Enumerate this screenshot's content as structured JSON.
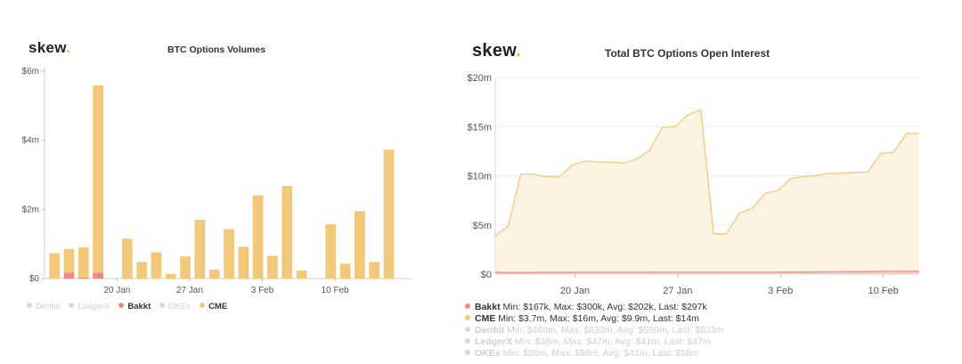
{
  "left": {
    "logo": "skew",
    "logo_dot": ".",
    "title": "BTC Options Volumes",
    "legend": [
      {
        "name": "Deribit",
        "color": "#d9d9d9",
        "active": false
      },
      {
        "name": "LedgerX",
        "color": "#d9d9d9",
        "active": false
      },
      {
        "name": "Bakkt",
        "color": "#ef8a8a",
        "active": true
      },
      {
        "name": "OKEx",
        "color": "#d9d9d9",
        "active": false
      },
      {
        "name": "CME",
        "color": "#f2c97a",
        "active": true
      }
    ]
  },
  "right": {
    "logo": "skew",
    "logo_dot": ".",
    "title": "Total BTC Options Open Interest",
    "legend": [
      {
        "name": "Bakkt",
        "stats": "Min: $167k, Max: $300k, Avg: $202k, Last: $297k",
        "color": "#ef8a8a",
        "active": true
      },
      {
        "name": "CME",
        "stats": "Min: $3.7m, Max: $16m, Avg: $9.9m, Last: $14m",
        "color": "#f2c97a",
        "active": true
      },
      {
        "name": "Deribit",
        "stats": "Min: $469m, Max: $633m, Avg: $580m, Last: $633m",
        "color": "#d9d9d9",
        "active": false
      },
      {
        "name": "LedgerX",
        "stats": "Min: $38m, Max: $47m, Avg: $41m, Last: $47m",
        "color": "#d9d9d9",
        "active": false
      },
      {
        "name": "OKEx",
        "stats": "Min: $20m, Max: $58m, Avg: $41m, Last: $58m",
        "color": "#d9d9d9",
        "active": false
      }
    ]
  },
  "chart_data": [
    {
      "type": "bar",
      "title": "BTC Options Volumes",
      "xlabel": "",
      "ylabel": "",
      "ylim": [
        0,
        6000000
      ],
      "yticks": [
        0,
        2000000,
        4000000,
        6000000
      ],
      "ytick_labels": [
        "$0",
        "$2m",
        "$4m",
        "$6m"
      ],
      "xtick_labels": [
        "20 Jan",
        "27 Jan",
        "3 Feb",
        "10 Feb"
      ],
      "xtick_index": [
        4.8,
        9.8,
        14.8,
        19.8
      ],
      "grid": false,
      "stacked": true,
      "categories": [
        "1",
        "2",
        "3",
        "4",
        "5",
        "6",
        "7",
        "8",
        "9",
        "10",
        "11",
        "12",
        "13",
        "14",
        "15",
        "16",
        "17",
        "18",
        "19",
        "20",
        "21",
        "22",
        "23",
        "24",
        "25"
      ],
      "series": [
        {
          "name": "Bakkt",
          "color": "#ef8a8a",
          "values": [
            0,
            170000,
            30000,
            170000,
            0,
            0,
            0,
            0,
            0,
            0,
            0,
            0,
            0,
            0,
            0,
            0,
            0,
            0,
            0,
            0,
            0,
            0,
            0,
            0,
            0
          ]
        },
        {
          "name": "CME",
          "color": "#f2c97a",
          "values": [
            730000,
            690000,
            870000,
            5420000,
            0,
            1150000,
            480000,
            760000,
            130000,
            640000,
            1700000,
            260000,
            1430000,
            920000,
            2410000,
            660000,
            2680000,
            230000,
            0,
            1570000,
            430000,
            1950000,
            480000,
            3730000,
            0
          ]
        }
      ]
    },
    {
      "type": "area",
      "title": "Total BTC Options Open Interest",
      "xlabel": "",
      "ylabel": "",
      "ylim": [
        0,
        20000000
      ],
      "yticks": [
        0,
        5000000,
        10000000,
        15000000,
        20000000
      ],
      "ytick_labels": [
        "$0",
        "$5m",
        "$10m",
        "$15m",
        "$20m"
      ],
      "xtick_labels": [
        "20 Jan",
        "27 Jan",
        "3 Feb",
        "10 Feb"
      ],
      "xtick_index": [
        6.2,
        14.2,
        22.2,
        30.2
      ],
      "grid": true,
      "x": [
        0,
        1,
        2,
        3,
        4,
        5,
        6,
        7,
        8,
        9,
        10,
        11,
        12,
        13,
        14,
        15,
        16,
        17,
        18,
        19,
        20,
        21,
        22,
        23,
        24,
        25,
        26,
        27,
        28,
        29,
        30,
        31,
        32,
        33
      ],
      "series": [
        {
          "name": "CME",
          "color": "#f2c97a",
          "values": [
            3700000,
            4700000,
            10000000,
            10000000,
            9700000,
            9700000,
            10900000,
            11300000,
            11200000,
            11200000,
            11100000,
            11500000,
            12400000,
            14700000,
            14800000,
            16000000,
            16500000,
            3900000,
            3900000,
            6000000,
            6500000,
            8000000,
            8300000,
            9500000,
            9700000,
            9800000,
            10000000,
            10000000,
            10100000,
            10100000,
            12000000,
            12100000,
            14000000,
            14000000
          ]
        },
        {
          "name": "Bakkt",
          "color": "#ef8a8a",
          "values": [
            170000,
            170000,
            170000,
            170000,
            180000,
            180000,
            190000,
            190000,
            190000,
            190000,
            190000,
            190000,
            190000,
            195000,
            195000,
            200000,
            200000,
            200000,
            200000,
            205000,
            210000,
            210000,
            210000,
            215000,
            220000,
            230000,
            240000,
            250000,
            260000,
            270000,
            280000,
            290000,
            297000,
            297000
          ]
        }
      ]
    }
  ]
}
